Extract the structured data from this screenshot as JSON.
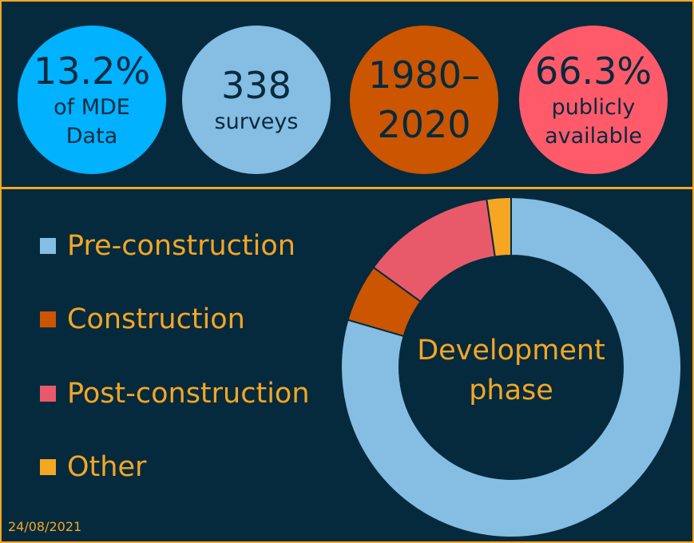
{
  "stats": [
    {
      "big": "13.2%",
      "small": "of MDE Data",
      "lines": [
        "of MDE",
        "Data"
      ],
      "color": "#00b2ff"
    },
    {
      "big": "338",
      "small": "surveys",
      "lines": [
        "surveys"
      ],
      "color": "#85bde3"
    },
    {
      "big": "1980–2020",
      "lines": [],
      "bigLines": [
        "1980–",
        "2020"
      ],
      "color": "#cc5500"
    },
    {
      "big": "66.3%",
      "small": "publicly available",
      "lines": [
        "publicly",
        "available"
      ],
      "color": "#ff5a6a"
    }
  ],
  "chart_data": {
    "type": "pie",
    "donut": true,
    "center_label": "Development phase",
    "legend_position": "left",
    "categories": [
      "Pre-construction",
      "Construction",
      "Post-construction",
      "Other"
    ],
    "values": [
      79.5,
      5.5,
      12.7,
      2.3
    ],
    "colors": [
      "#85bde3",
      "#cc5500",
      "#e85a6a",
      "#f5a623"
    ]
  },
  "date": "24/08/2021"
}
